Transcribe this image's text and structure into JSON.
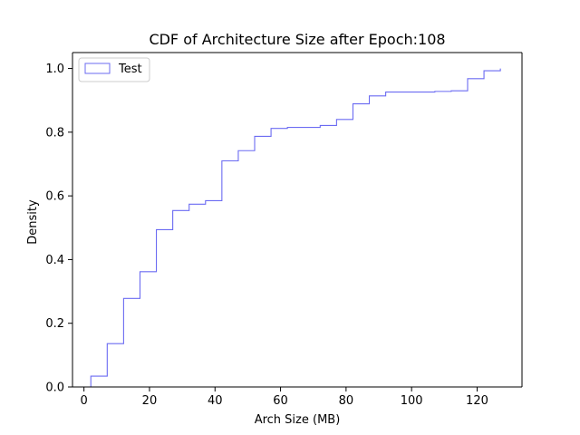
{
  "chart_data": {
    "type": "step",
    "title": "CDF of Architecture Size after Epoch:108",
    "xlabel": "Arch Size (MB)",
    "ylabel": "Density",
    "xlim": [
      -3.5,
      133.7
    ],
    "ylim": [
      0.0,
      1.05
    ],
    "xticks": [
      0,
      20,
      40,
      60,
      80,
      100,
      120
    ],
    "yticks": [
      0.0,
      0.2,
      0.4,
      0.6,
      0.8,
      1.0
    ],
    "xtick_labels": [
      "0",
      "20",
      "40",
      "60",
      "80",
      "100",
      "120"
    ],
    "ytick_labels": [
      "0.0",
      "0.2",
      "0.4",
      "0.6",
      "0.8",
      "1.0"
    ],
    "grid": false,
    "legend_position": "upper-left",
    "series": [
      {
        "name": "Test",
        "color": "#6b6bf2",
        "bin_edges": [
          2.1,
          7.1,
          12.1,
          17.1,
          22.1,
          27.1,
          32.1,
          37.1,
          42.1,
          47.1,
          52.1,
          57.1,
          62.1,
          67.1,
          72.1,
          77.1,
          82.1,
          87.1,
          92.1,
          97.1,
          102.1,
          107.1,
          112.1,
          117.1,
          122.1,
          127.1
        ],
        "cdf": [
          0.034,
          0.136,
          0.278,
          0.362,
          0.494,
          0.554,
          0.574,
          0.585,
          0.71,
          0.742,
          0.787,
          0.812,
          0.815,
          0.815,
          0.821,
          0.84,
          0.889,
          0.914,
          0.926,
          0.926,
          0.926,
          0.928,
          0.93,
          0.968,
          0.993,
          1.0
        ]
      }
    ]
  }
}
